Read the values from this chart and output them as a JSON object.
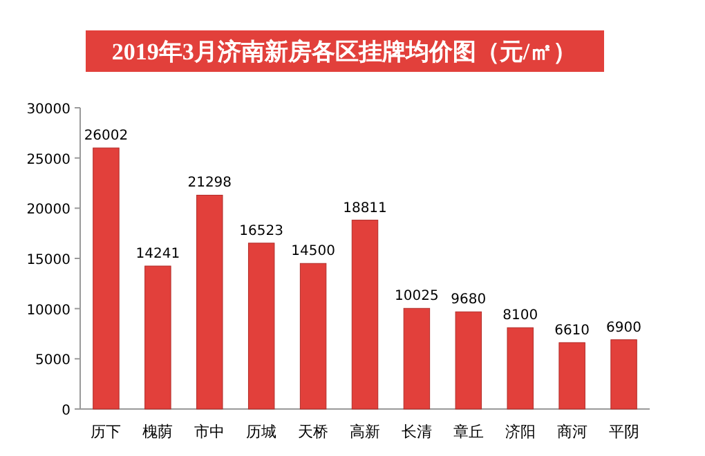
{
  "chart_data": {
    "type": "bar",
    "title": "2019年3月济南新房各区挂牌均价图（元/㎡）",
    "categories": [
      "历下",
      "槐荫",
      "市中",
      "历城",
      "天桥",
      "高新",
      "长清",
      "章丘",
      "济阳",
      "商河",
      "平阴"
    ],
    "values": [
      26002,
      14241,
      21298,
      16523,
      14500,
      18811,
      10025,
      9680,
      8100,
      6610,
      6900
    ],
    "color": "#e2403b",
    "ylim": [
      0,
      30000
    ],
    "yticks": [
      0,
      5000,
      10000,
      15000,
      20000,
      25000,
      30000
    ],
    "grid": false,
    "data_labels": true
  }
}
